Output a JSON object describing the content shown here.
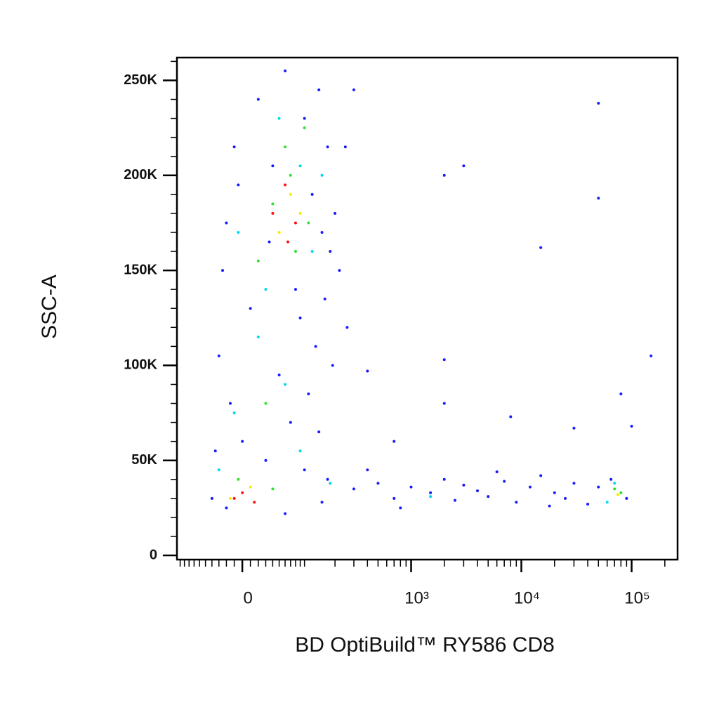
{
  "chart_data": {
    "type": "scatter",
    "x_title": "BD OptiBuild™ RY586 CD8",
    "y_title": "SSC-A",
    "xscale": "biexponential",
    "xlim": [
      -108,
      261000
    ],
    "ylim": [
      -2200,
      262000
    ],
    "xticks": [
      0,
      {
        "value": 1000,
        "label": "10³"
      },
      {
        "value": 10000,
        "label": "10⁴"
      },
      {
        "value": 100000,
        "label": "10⁵"
      }
    ],
    "xminorticks": [
      -100,
      -90,
      -80,
      -70,
      -60,
      -50,
      -40,
      -30,
      -20,
      -10,
      10,
      20,
      30,
      40,
      50,
      60,
      70,
      80,
      90,
      100,
      200,
      300,
      400,
      500,
      600,
      700,
      800,
      900,
      2000,
      3000,
      4000,
      5000,
      6000,
      7000,
      8000,
      9000,
      20000,
      30000,
      40000,
      50000,
      60000,
      70000,
      80000,
      90000,
      200000
    ],
    "yticks": [
      0,
      {
        "value": 50000,
        "label": "50K"
      },
      {
        "value": 100000,
        "label": "100K"
      },
      {
        "value": 150000,
        "label": "150K"
      },
      {
        "value": 200000,
        "label": "200K"
      },
      {
        "value": 250000,
        "label": "250K"
      }
    ],
    "yminorticks": [
      10000,
      20000,
      30000,
      40000,
      60000,
      70000,
      80000,
      90000,
      110000,
      120000,
      130000,
      140000,
      160000,
      170000,
      180000,
      190000,
      210000,
      220000,
      230000,
      240000,
      260000
    ],
    "series": [
      {
        "color": "#1a1aff",
        "x": [
          20,
          60,
          100,
          140,
          -10,
          40,
          120,
          170,
          -20,
          150,
          180,
          -25,
          10,
          90,
          160,
          130,
          -30,
          50,
          110,
          -15,
          70,
          140,
          -35,
          30,
          100,
          -40,
          150,
          60,
          -20,
          170,
          0,
          80,
          200,
          250,
          300,
          220,
          260,
          190,
          -5,
          35,
          300,
          500,
          700,
          1000,
          1500,
          2000,
          2500,
          3000,
          4000,
          5000,
          7000,
          9000,
          12000,
          15000,
          20000,
          25000,
          30000,
          40000,
          50000,
          65000,
          90000,
          400,
          800,
          6000,
          18000,
          2000,
          3000,
          50000,
          50000,
          15000,
          150000,
          2000,
          2000,
          8000,
          30000,
          100000,
          80000,
          700,
          400
        ],
        "values": [
          240000,
          255000,
          230000,
          245000,
          215000,
          205000,
          190000,
          215000,
          175000,
          170000,
          160000,
          150000,
          130000,
          125000,
          135000,
          110000,
          105000,
          95000,
          85000,
          80000,
          70000,
          65000,
          55000,
          50000,
          45000,
          30000,
          28000,
          22000,
          25000,
          40000,
          60000,
          140000,
          180000,
          215000,
          245000,
          150000,
          120000,
          100000,
          195000,
          165000,
          35000,
          38000,
          30000,
          36000,
          33000,
          40000,
          29000,
          37000,
          34000,
          31000,
          39000,
          28000,
          36000,
          42000,
          33000,
          30000,
          38000,
          27000,
          36000,
          40000,
          30000,
          45000,
          25000,
          44000,
          26000,
          200000,
          205000,
          238000,
          188000,
          162000,
          105000,
          103000,
          80000,
          73000,
          67000,
          68000,
          85000,
          60000,
          97000
        ]
      },
      {
        "color": "#00d8f0",
        "x": [
          50,
          90,
          -5,
          120,
          30,
          60,
          -10,
          90,
          180,
          70000,
          60000,
          1500,
          -30,
          150,
          20
        ],
        "values": [
          230000,
          205000,
          170000,
          160000,
          140000,
          90000,
          75000,
          55000,
          38000,
          38000,
          28000,
          31000,
          45000,
          200000,
          115000
        ]
      },
      {
        "color": "#30e030",
        "x": [
          60,
          100,
          40,
          80,
          20,
          110,
          30,
          -5,
          40,
          80000,
          70000,
          70
        ],
        "values": [
          215000,
          225000,
          185000,
          160000,
          155000,
          175000,
          80000,
          40000,
          35000,
          33000,
          35000,
          200000
        ]
      },
      {
        "color": "#f0f000",
        "x": [
          70,
          50,
          90,
          10,
          -15,
          75000
        ],
        "values": [
          190000,
          170000,
          180000,
          36000,
          30000,
          32000
        ]
      },
      {
        "color": "#ff1010",
        "x": [
          60,
          80,
          40,
          65,
          0,
          -10,
          15
        ],
        "values": [
          195000,
          175000,
          180000,
          165000,
          33000,
          30000,
          28000
        ]
      }
    ]
  }
}
